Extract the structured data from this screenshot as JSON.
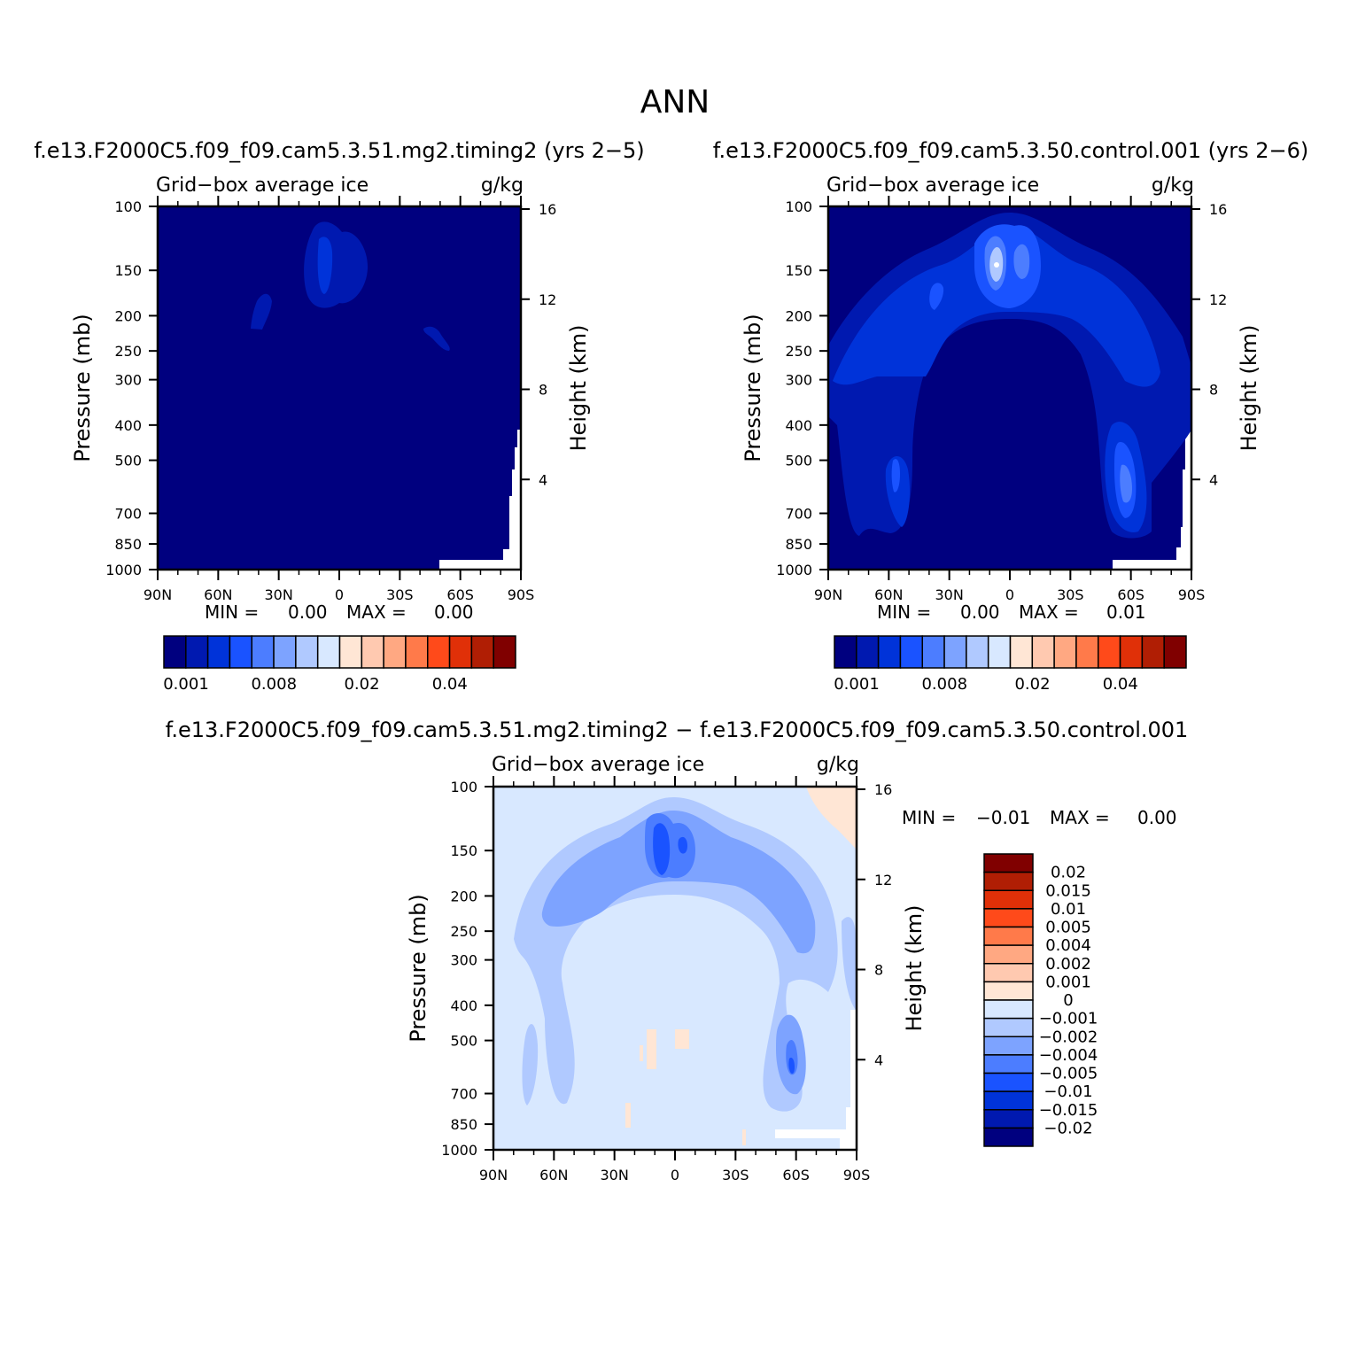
{
  "figure": {
    "main_title": "ANN"
  },
  "colors": {
    "abs_fill": [
      "#00007f",
      "#0019b0",
      "#0033d9",
      "#1a53ff",
      "#4c7dff",
      "#7da3ff",
      "#b0c9ff",
      "#d8e8ff",
      "#ffe6d5",
      "#ffc9b0",
      "#ffa882",
      "#ff7a4a",
      "#ff4a1a",
      "#e03008",
      "#b01e04",
      "#800000"
    ],
    "diff_fill": [
      "#00007f",
      "#0019b0",
      "#0033d9",
      "#1a53ff",
      "#4c7dff",
      "#7da3ff",
      "#b0c9ff",
      "#d8e8ff",
      "#ffe6d5",
      "#ffc9b0",
      "#ffa882",
      "#ff7a4a",
      "#ff4a1a",
      "#e03008",
      "#b01e04",
      "#800000"
    ]
  },
  "chart_data": [
    {
      "id": "panel1",
      "type": "heatmap",
      "title": "f.e13.F2000C5.f09_f09.cam5.3.51.mg2.timing2 (yrs 2−5)",
      "left_label": "Grid−box average ice",
      "right_label": "g/kg",
      "ylabel": "Pressure (mb)",
      "ylabel_right": "Height (km)",
      "x_ticks": [
        "90N",
        "60N",
        "30N",
        "0",
        "30S",
        "60S",
        "90S"
      ],
      "y_ticks": [
        "100",
        "150",
        "200",
        "250",
        "300",
        "400",
        "500",
        "700",
        "850",
        "1000"
      ],
      "y_right_ticks": [
        "16",
        "12",
        "8",
        "4"
      ],
      "ylim_mb": [
        1000,
        100
      ],
      "xlim_deg": [
        90,
        -90
      ],
      "min_label": "MIN =",
      "min_value": "0.00",
      "max_label": "MAX =",
      "max_value": "0.00",
      "colorbar_labels": [
        "0.001",
        "0.008",
        "0.02",
        "0.04"
      ]
    },
    {
      "id": "panel2",
      "type": "heatmap",
      "title": "f.e13.F2000C5.f09_f09.cam5.3.50.control.001 (yrs 2−6)",
      "left_label": "Grid−box average ice",
      "right_label": "g/kg",
      "ylabel": "Pressure (mb)",
      "ylabel_right": "Height (km)",
      "x_ticks": [
        "90N",
        "60N",
        "30N",
        "0",
        "30S",
        "60S",
        "90S"
      ],
      "y_ticks": [
        "100",
        "150",
        "200",
        "250",
        "300",
        "400",
        "500",
        "700",
        "850",
        "1000"
      ],
      "y_right_ticks": [
        "16",
        "12",
        "8",
        "4"
      ],
      "ylim_mb": [
        1000,
        100
      ],
      "xlim_deg": [
        90,
        -90
      ],
      "min_label": "MIN =",
      "min_value": "0.00",
      "max_label": "MAX =",
      "max_value": "0.01",
      "colorbar_labels": [
        "0.001",
        "0.008",
        "0.02",
        "0.04"
      ]
    },
    {
      "id": "panel3",
      "type": "heatmap",
      "title": "f.e13.F2000C5.f09_f09.cam5.3.51.mg2.timing2 − f.e13.F2000C5.f09_f09.cam5.3.50.control.001",
      "left_label": "Grid−box average ice",
      "right_label": "g/kg",
      "ylabel": "Pressure (mb)",
      "ylabel_right": "Height (km)",
      "x_ticks": [
        "90N",
        "60N",
        "30N",
        "0",
        "30S",
        "60S",
        "90S"
      ],
      "y_ticks": [
        "100",
        "150",
        "200",
        "250",
        "300",
        "400",
        "500",
        "700",
        "850",
        "1000"
      ],
      "y_right_ticks": [
        "16",
        "12",
        "8",
        "4"
      ],
      "ylim_mb": [
        1000,
        100
      ],
      "xlim_deg": [
        90,
        -90
      ],
      "min_label": "MIN =",
      "min_value": "−0.01",
      "max_label": "MAX =",
      "max_value": "0.00",
      "colorbar_labels": [
        "0.02",
        "0.015",
        "0.01",
        "0.005",
        "0.004",
        "0.002",
        "0.001",
        "0",
        "−0.001",
        "−0.002",
        "−0.004",
        "−0.005",
        "−0.01",
        "−0.015",
        "−0.02"
      ]
    }
  ]
}
